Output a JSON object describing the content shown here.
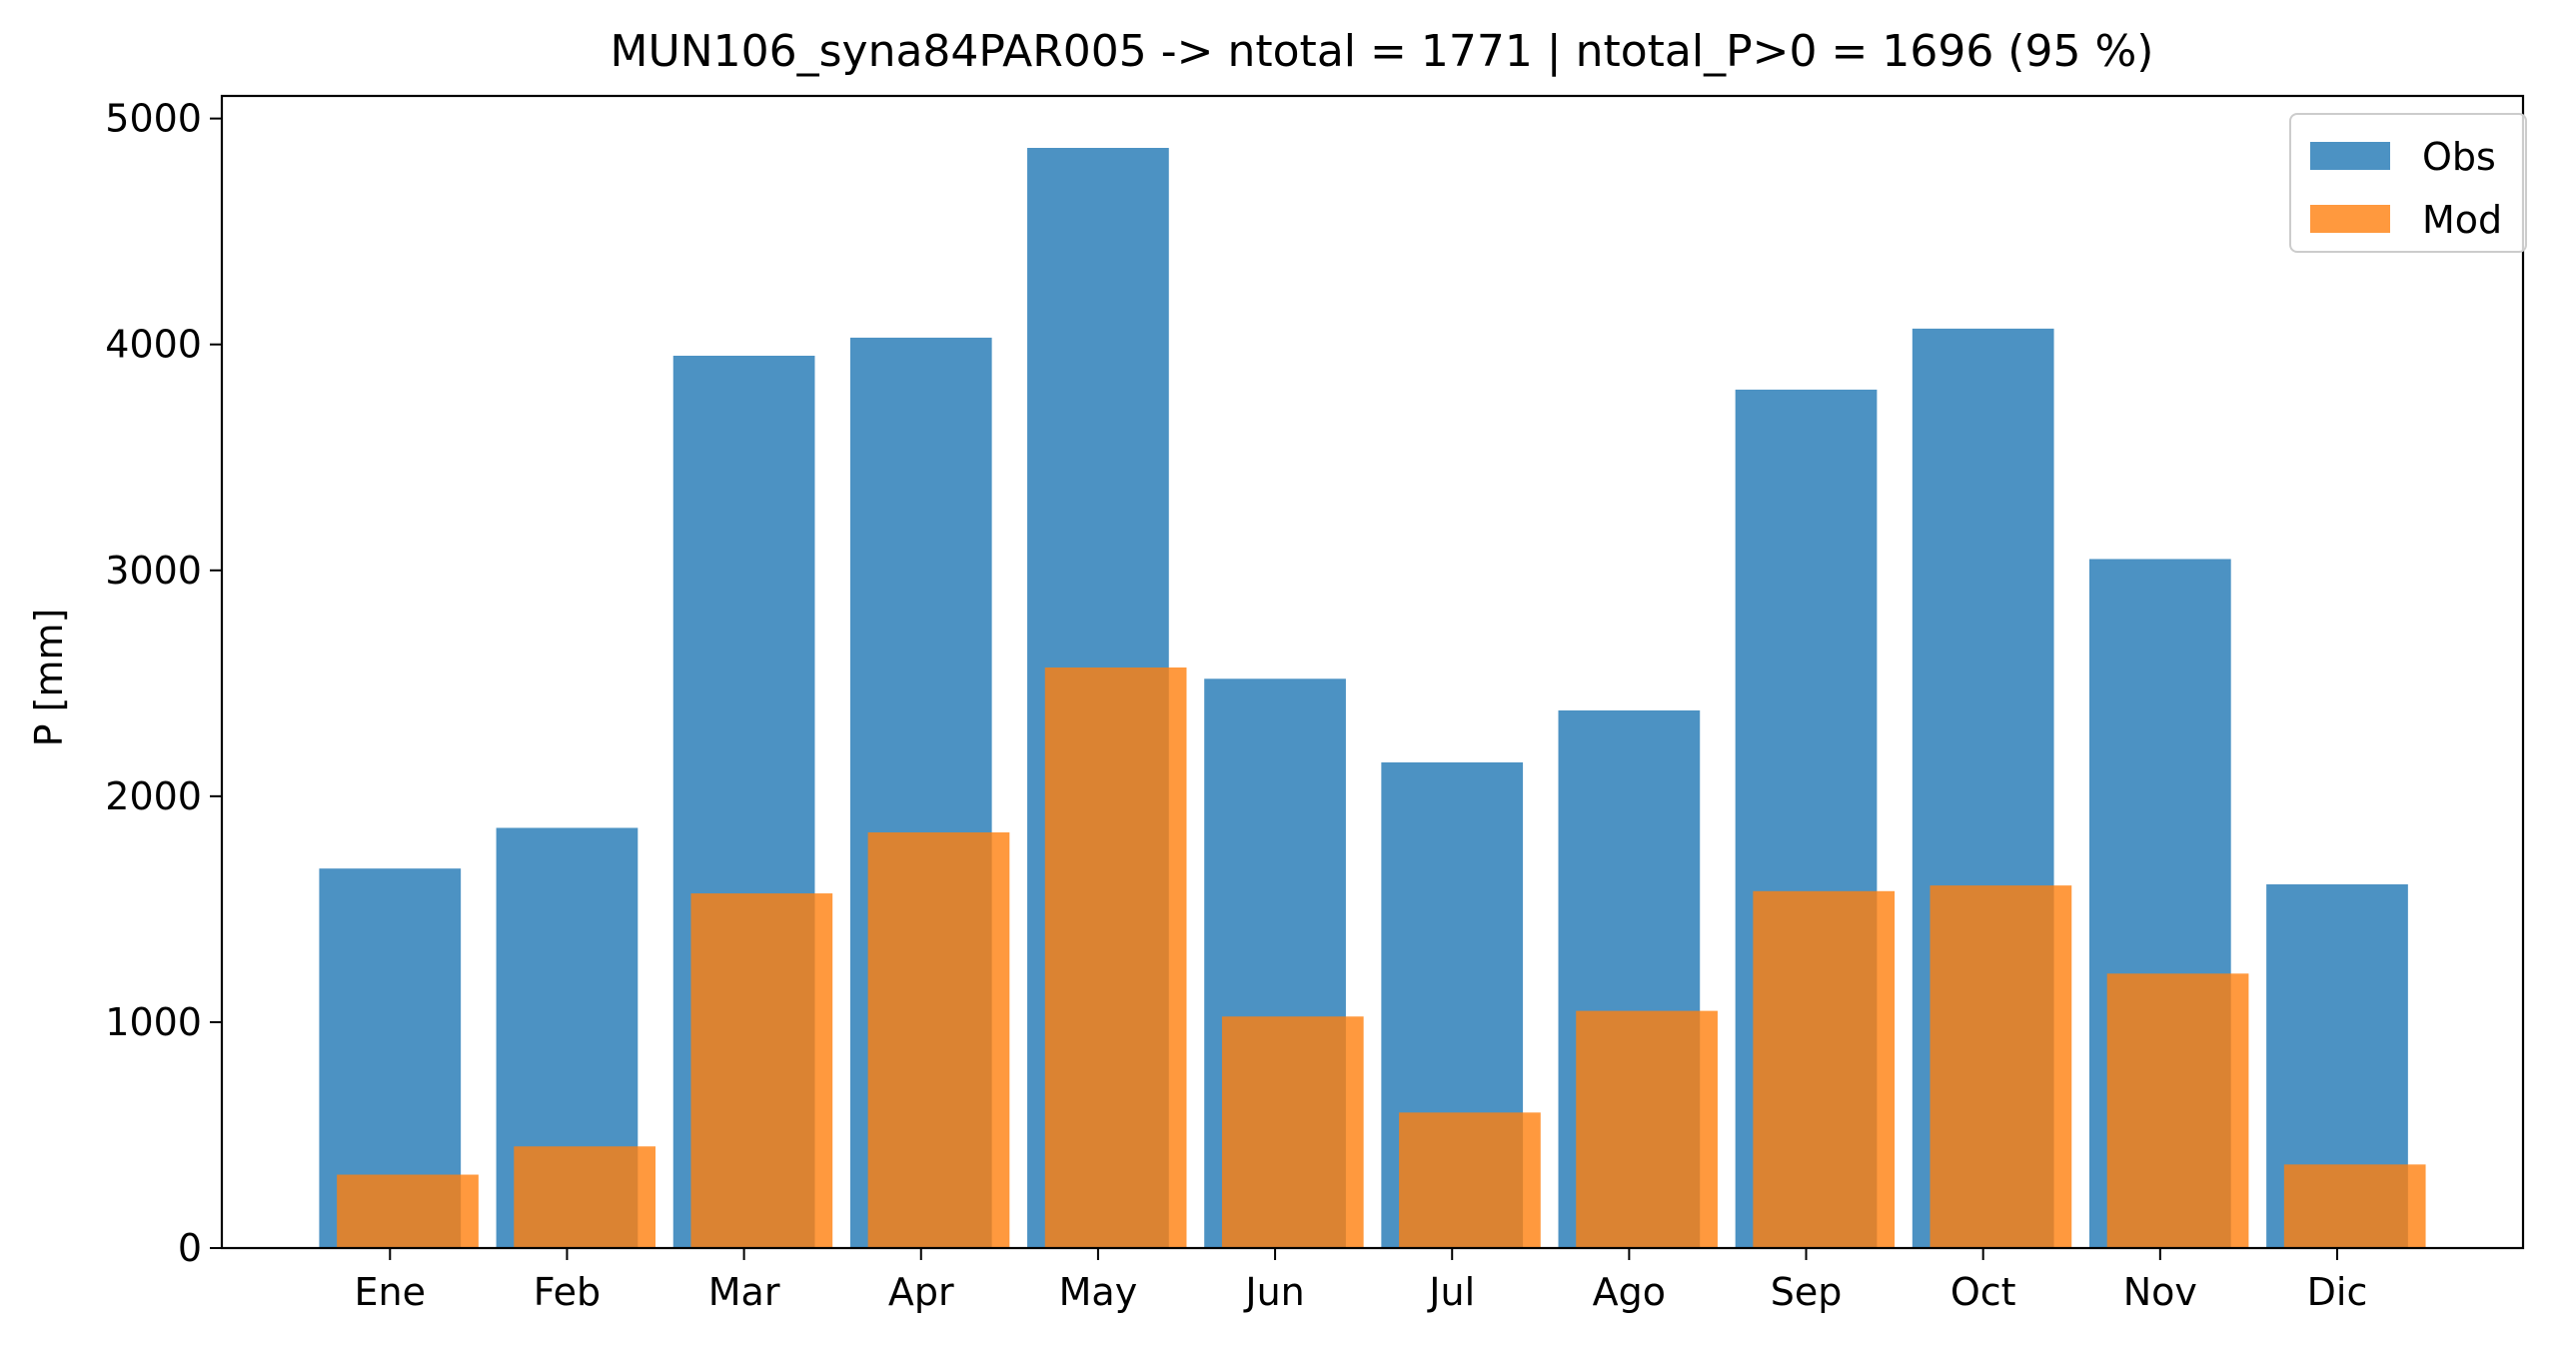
{
  "chart_data": {
    "type": "bar",
    "title": "MUN106_syna84PAR005 -> ntotal = 1771 | ntotal_P>0 = 1696 (95 %)",
    "xlabel": "",
    "ylabel": "P [mm]",
    "categories": [
      "Ene",
      "Feb",
      "Mar",
      "Apr",
      "May",
      "Jun",
      "Jul",
      "Ago",
      "Sep",
      "Oct",
      "Nov",
      "Dic"
    ],
    "series": [
      {
        "name": "Obs",
        "color": "#1f77b4",
        "values": [
          1680,
          1860,
          3950,
          4030,
          4870,
          2520,
          2150,
          2380,
          3800,
          4070,
          3050,
          1610
        ]
      },
      {
        "name": "Mod",
        "color": "#ff7f0e",
        "values": [
          325,
          450,
          1570,
          1840,
          2570,
          1025,
          600,
          1050,
          1580,
          1605,
          1215,
          370
        ]
      }
    ],
    "ylim": [
      0,
      5100
    ],
    "yticks": [
      0,
      1000,
      2000,
      3000,
      4000,
      5000
    ],
    "grid": false,
    "legend_position": "top-right"
  }
}
